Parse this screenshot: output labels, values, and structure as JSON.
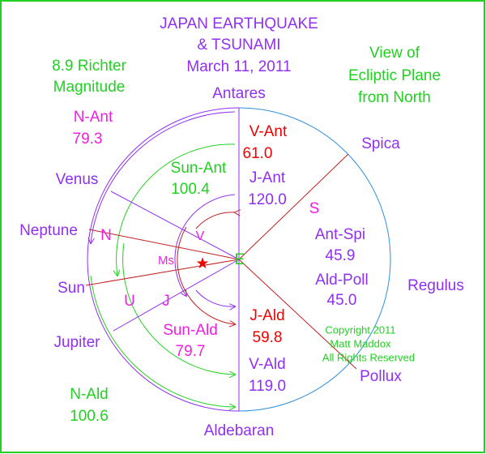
{
  "title": [
    "JAPAN EARTHQUAKE",
    "& TSUNAMI",
    "March 11, 2011"
  ],
  "magnitude": [
    "8.9 Richter",
    "Magnitude"
  ],
  "view": [
    "View of",
    "Ecliptic Plane",
    "from North"
  ],
  "stars": {
    "top": "Antares",
    "bottom": "Aldebaran",
    "spica": "Spica",
    "regulus": "Regulus",
    "pollux": "Pollux"
  },
  "planets": {
    "venus": "Venus",
    "neptune": "Neptune",
    "sun": "Sun",
    "jupiter": "Jupiter"
  },
  "marks": {
    "n": "N",
    "s": "S",
    "u": "U",
    "j": "J",
    "v": "V",
    "ms": "Ms",
    "e": "E"
  },
  "angles": {
    "n_ant": [
      "N-Ant",
      "79.3"
    ],
    "v_ant": [
      "V-Ant",
      "61.0"
    ],
    "sun_ant": [
      "Sun-Ant",
      "100.4"
    ],
    "j_ant": [
      "J-Ant",
      "120.0"
    ],
    "ant_spi": [
      "Ant-Spi",
      "45.9"
    ],
    "ald_poll": [
      "Ald-Poll",
      "45.0"
    ],
    "sun_ald": [
      "Sun-Ald",
      "79.7"
    ],
    "j_ald": [
      "J-Ald",
      "59.8"
    ],
    "v_ald": [
      "V-Ald",
      "119.0"
    ],
    "n_ald": [
      "N-Ald",
      "100.6"
    ]
  },
  "copyright": [
    "Copyright 2011",
    "Matt Maddox",
    "All Rights Reserved"
  ]
}
